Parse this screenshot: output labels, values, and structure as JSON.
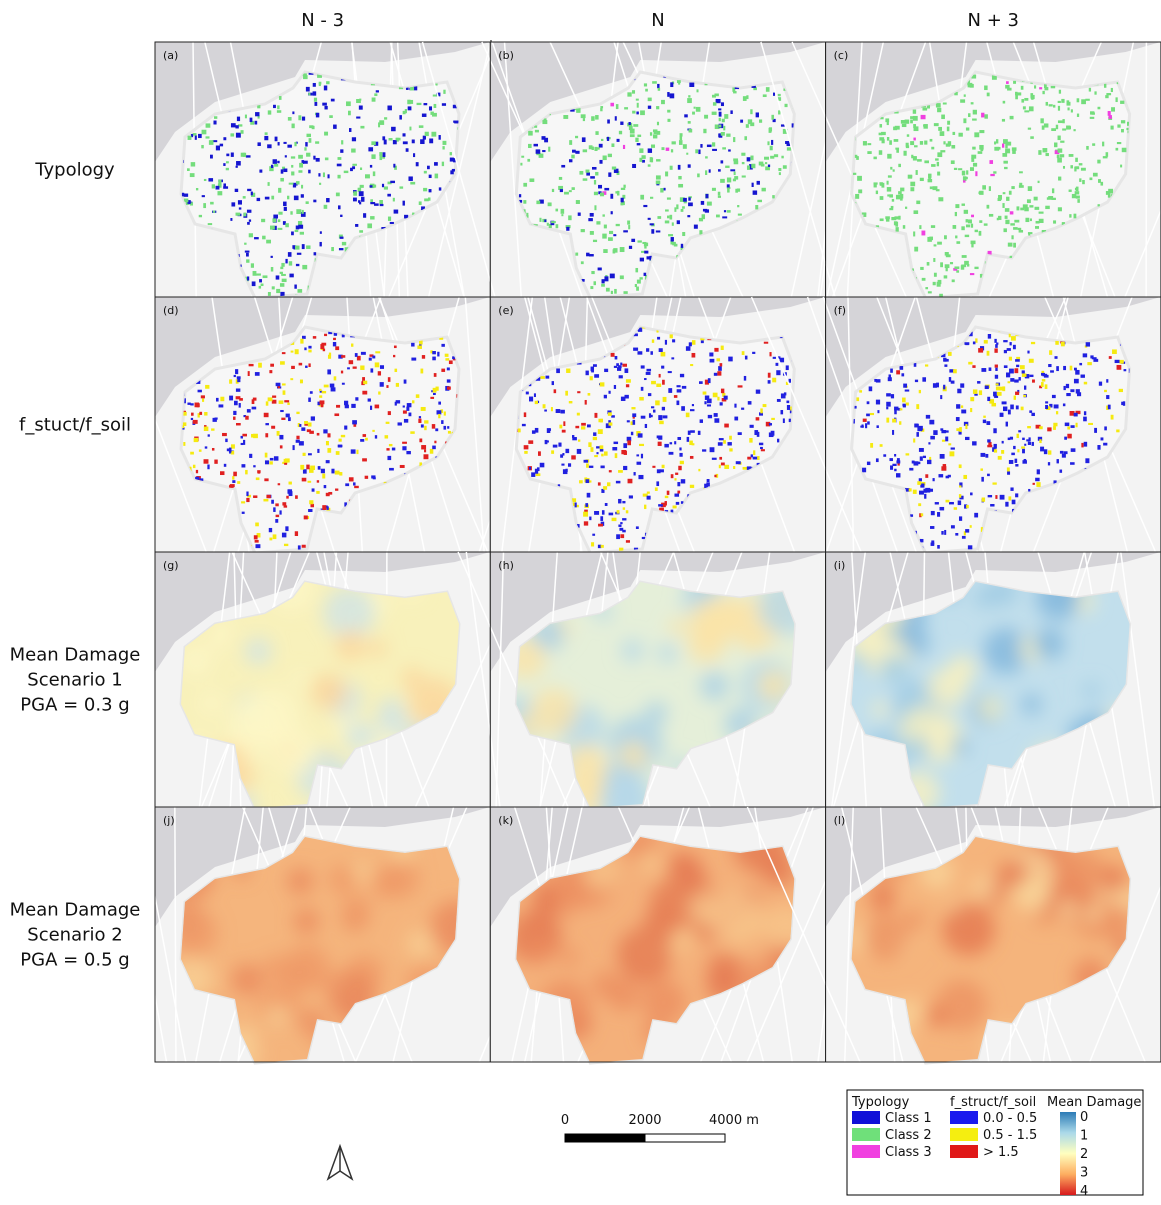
{
  "columns": [
    "N - 3",
    "N",
    "N + 3"
  ],
  "rows": [
    {
      "label": [
        "Typology"
      ],
      "panels": [
        "(a)",
        "(b)",
        "(c)"
      ]
    },
    {
      "label": [
        "f_stuct/f_soil"
      ],
      "panels": [
        "(d)",
        "(e)",
        "(f)"
      ]
    },
    {
      "label": [
        "Mean Damage",
        "Scenario 1",
        "PGA = 0.3 g"
      ],
      "panels": [
        "(g)",
        "(h)",
        "(i)"
      ]
    },
    {
      "label": [
        "Mean Damage",
        "Scenario 2",
        "PGA = 0.5 g"
      ],
      "panels": [
        "(j)",
        "(k)",
        "(l)"
      ]
    }
  ],
  "scale_bar": {
    "labels": [
      "0",
      "2000",
      "4000 m"
    ]
  },
  "legend": {
    "typology": {
      "title": "Typology",
      "items": [
        {
          "label": "Class 1",
          "color": "#1010d8"
        },
        {
          "label": "Class 2",
          "color": "#6fe07a"
        },
        {
          "label": "Class 3",
          "color": "#f040e0"
        }
      ]
    },
    "f_struct": {
      "title": "f_struct/f_soil",
      "items": [
        {
          "label": "0.0 - 0.5",
          "color": "#1a1aee"
        },
        {
          "label": "0.5 - 1.5",
          "color": "#f5ee10"
        },
        {
          "label": "> 1.5",
          "color": "#e01818"
        }
      ]
    },
    "damage": {
      "title": "Mean Damage",
      "ticks": [
        "0",
        "1",
        "2",
        "3",
        "4"
      ],
      "colors": [
        "#2c7bb6",
        "#abd9e9",
        "#ffffbf",
        "#fdae61",
        "#d7191c"
      ]
    }
  }
}
